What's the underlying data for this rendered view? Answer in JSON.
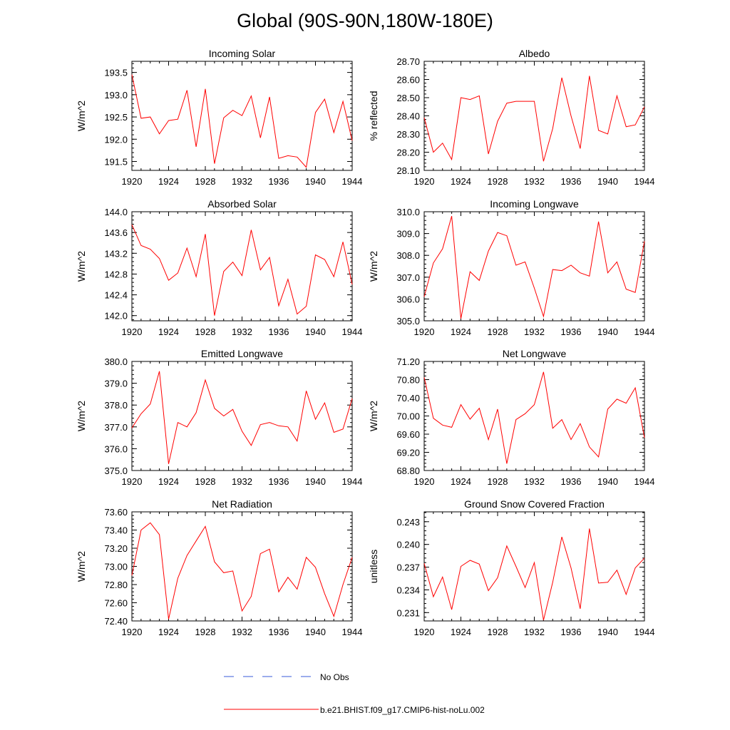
{
  "title": "Global (90S-90N,180W-180E)",
  "legend": {
    "items": [
      {
        "label": "No Obs",
        "color": "#3a5bd9",
        "dashed": true
      },
      {
        "label": "b.e21.BHIST.f09_g17.CMIP6-hist-noLu.002",
        "color": "#ff0000",
        "dashed": false
      }
    ]
  },
  "series_color": "#ff0000",
  "chart_data": [
    {
      "type": "line",
      "title": "Incoming Solar",
      "ylabel": "W/m^2",
      "xlim": [
        1920,
        1944
      ],
      "ylim": [
        191.3,
        193.75
      ],
      "xticks": [
        "1920",
        "1924",
        "1928",
        "1932",
        "1936",
        "1940",
        "1944"
      ],
      "yticks": [
        "191.5",
        "192.0",
        "192.5",
        "193.0",
        "193.5"
      ],
      "x": [
        1920,
        1921,
        1922,
        1923,
        1924,
        1925,
        1926,
        1927,
        1928,
        1929,
        1930,
        1931,
        1932,
        1933,
        1934,
        1935,
        1936,
        1937,
        1938,
        1939,
        1940,
        1941,
        1942,
        1943,
        1944
      ],
      "values": [
        193.45,
        192.47,
        192.5,
        192.12,
        192.42,
        192.45,
        193.1,
        191.83,
        193.13,
        191.45,
        192.48,
        192.65,
        192.53,
        192.97,
        192.03,
        192.95,
        191.57,
        191.63,
        191.6,
        191.37,
        192.6,
        192.9,
        192.15,
        192.85,
        191.97
      ]
    },
    {
      "type": "line",
      "title": "Albedo",
      "ylabel": "% reflected",
      "xlim": [
        1920,
        1944
      ],
      "ylim": [
        28.1,
        28.7
      ],
      "xticks": [
        "1920",
        "1924",
        "1928",
        "1932",
        "1936",
        "1940",
        "1944"
      ],
      "yticks": [
        "28.10",
        "28.20",
        "28.30",
        "28.40",
        "28.50",
        "28.60",
        "28.70"
      ],
      "x": [
        1920,
        1921,
        1922,
        1923,
        1924,
        1925,
        1926,
        1927,
        1928,
        1929,
        1930,
        1931,
        1932,
        1933,
        1934,
        1935,
        1936,
        1937,
        1938,
        1939,
        1940,
        1941,
        1942,
        1943,
        1944
      ],
      "values": [
        28.39,
        28.2,
        28.25,
        28.16,
        28.5,
        28.49,
        28.51,
        28.19,
        28.37,
        28.47,
        28.48,
        28.48,
        28.48,
        28.15,
        28.33,
        28.61,
        28.4,
        28.22,
        28.62,
        28.32,
        28.3,
        28.51,
        28.34,
        28.35,
        28.45
      ]
    },
    {
      "type": "line",
      "title": "Absorbed Solar",
      "ylabel": "W/m^2",
      "xlim": [
        1920,
        1944
      ],
      "ylim": [
        141.9,
        144.0
      ],
      "xticks": [
        "1920",
        "1924",
        "1928",
        "1932",
        "1936",
        "1940",
        "1944"
      ],
      "yticks": [
        "142.0",
        "142.4",
        "142.8",
        "143.2",
        "143.6",
        "144.0"
      ],
      "x": [
        1920,
        1921,
        1922,
        1923,
        1924,
        1925,
        1926,
        1927,
        1928,
        1929,
        1930,
        1931,
        1932,
        1933,
        1934,
        1935,
        1936,
        1937,
        1938,
        1939,
        1940,
        1941,
        1942,
        1943,
        1944
      ],
      "values": [
        143.75,
        143.35,
        143.28,
        143.1,
        142.68,
        142.82,
        143.3,
        142.75,
        143.57,
        142.0,
        142.85,
        143.03,
        142.77,
        143.65,
        142.88,
        143.12,
        142.19,
        142.7,
        142.03,
        142.18,
        143.17,
        143.08,
        142.75,
        143.42,
        142.6
      ]
    },
    {
      "type": "line",
      "title": "Incoming Longwave",
      "ylabel": "W/m^2",
      "xlim": [
        1920,
        1944
      ],
      "ylim": [
        305.0,
        310.0
      ],
      "xticks": [
        "1920",
        "1924",
        "1928",
        "1932",
        "1936",
        "1940",
        "1944"
      ],
      "yticks": [
        "305.0",
        "306.0",
        "307.0",
        "308.0",
        "309.0",
        "310.0"
      ],
      "x": [
        1920,
        1921,
        1922,
        1923,
        1924,
        1925,
        1926,
        1927,
        1928,
        1929,
        1930,
        1931,
        1932,
        1933,
        1934,
        1935,
        1936,
        1937,
        1938,
        1939,
        1940,
        1941,
        1942,
        1943,
        1944
      ],
      "values": [
        306.1,
        307.65,
        308.3,
        309.8,
        305.1,
        307.25,
        306.85,
        308.2,
        309.05,
        308.9,
        307.55,
        307.7,
        306.5,
        305.2,
        307.35,
        307.3,
        307.55,
        307.2,
        307.05,
        309.55,
        307.2,
        307.7,
        306.45,
        306.3,
        308.65
      ]
    },
    {
      "type": "line",
      "title": "Emitted Longwave",
      "ylabel": "W/m^2",
      "xlim": [
        1920,
        1944
      ],
      "ylim": [
        375.0,
        380.0
      ],
      "xticks": [
        "1920",
        "1924",
        "1928",
        "1932",
        "1936",
        "1940",
        "1944"
      ],
      "yticks": [
        "375.0",
        "376.0",
        "377.0",
        "378.0",
        "379.0",
        "380.0"
      ],
      "x": [
        1920,
        1921,
        1922,
        1923,
        1924,
        1925,
        1926,
        1927,
        1928,
        1929,
        1930,
        1931,
        1932,
        1933,
        1934,
        1935,
        1936,
        1937,
        1938,
        1939,
        1940,
        1941,
        1942,
        1943,
        1944
      ],
      "values": [
        376.95,
        377.6,
        378.05,
        379.55,
        375.3,
        377.2,
        377.0,
        377.65,
        379.15,
        377.85,
        377.5,
        377.8,
        376.8,
        376.15,
        377.1,
        377.2,
        377.05,
        377.0,
        376.35,
        378.65,
        377.35,
        378.1,
        376.75,
        376.9,
        378.3
      ]
    },
    {
      "type": "line",
      "title": "Net Longwave",
      "ylabel": "W/m^2",
      "xlim": [
        1920,
        1944
      ],
      "ylim": [
        68.8,
        71.2
      ],
      "xticks": [
        "1920",
        "1924",
        "1928",
        "1932",
        "1936",
        "1940",
        "1944"
      ],
      "yticks": [
        "68.80",
        "69.20",
        "69.60",
        "70.00",
        "70.40",
        "70.80",
        "71.20"
      ],
      "x": [
        1920,
        1921,
        1922,
        1923,
        1924,
        1925,
        1926,
        1927,
        1928,
        1929,
        1930,
        1931,
        1932,
        1933,
        1934,
        1935,
        1936,
        1937,
        1938,
        1939,
        1940,
        1941,
        1942,
        1943,
        1944
      ],
      "values": [
        70.85,
        69.95,
        69.8,
        69.75,
        70.25,
        69.93,
        70.17,
        69.48,
        70.15,
        68.95,
        69.92,
        70.05,
        70.25,
        70.97,
        69.73,
        69.92,
        69.48,
        69.83,
        69.32,
        69.1,
        70.15,
        70.37,
        70.28,
        70.62,
        69.52
      ]
    },
    {
      "type": "line",
      "title": "Net Radiation",
      "ylabel": "W/m^2",
      "xlim": [
        1920,
        1944
      ],
      "ylim": [
        72.4,
        73.6
      ],
      "xticks": [
        "1920",
        "1924",
        "1928",
        "1932",
        "1936",
        "1940",
        "1944"
      ],
      "yticks": [
        "72.40",
        "72.60",
        "72.80",
        "73.00",
        "73.20",
        "73.40",
        "73.60"
      ],
      "x": [
        1920,
        1921,
        1922,
        1923,
        1924,
        1925,
        1926,
        1927,
        1928,
        1929,
        1930,
        1931,
        1932,
        1933,
        1934,
        1935,
        1936,
        1937,
        1938,
        1939,
        1940,
        1941,
        1942,
        1943,
        1944
      ],
      "values": [
        72.9,
        73.4,
        73.48,
        73.35,
        72.42,
        72.87,
        73.12,
        73.28,
        73.44,
        73.05,
        72.93,
        72.95,
        72.51,
        72.67,
        73.14,
        73.19,
        72.72,
        72.88,
        72.75,
        73.1,
        72.99,
        72.7,
        72.45,
        72.8,
        73.1
      ]
    },
    {
      "type": "line",
      "title": "Ground Snow Covered Fraction",
      "ylabel": "unitless",
      "xlim": [
        1920,
        1944
      ],
      "ylim": [
        0.2299,
        0.2443
      ],
      "xticks": [
        "1920",
        "1924",
        "1928",
        "1932",
        "1936",
        "1940",
        "1944"
      ],
      "yticks": [
        "0.231",
        "0.234",
        "0.237",
        "0.240",
        "0.243"
      ],
      "x": [
        1920,
        1921,
        1922,
        1923,
        1924,
        1925,
        1926,
        1927,
        1928,
        1929,
        1930,
        1931,
        1932,
        1933,
        1934,
        1935,
        1936,
        1937,
        1938,
        1939,
        1940,
        1941,
        1942,
        1943,
        1944
      ],
      "values": [
        0.2375,
        0.2331,
        0.2357,
        0.2314,
        0.2371,
        0.2379,
        0.2374,
        0.2339,
        0.2356,
        0.2398,
        0.2371,
        0.2343,
        0.2376,
        0.23,
        0.235,
        0.241,
        0.2369,
        0.2315,
        0.2421,
        0.2349,
        0.235,
        0.2366,
        0.2334,
        0.2369,
        0.2382
      ]
    }
  ]
}
